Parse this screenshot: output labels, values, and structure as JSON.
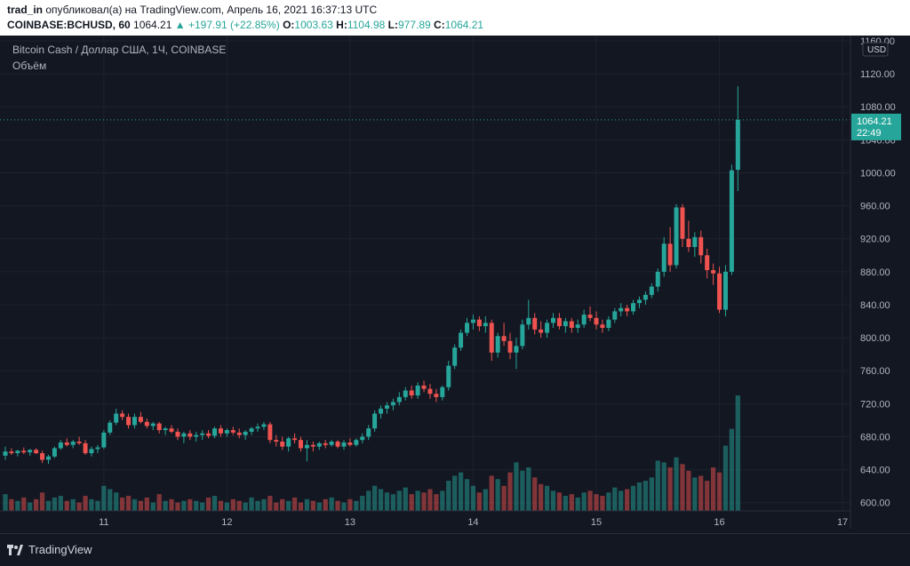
{
  "header": {
    "user": "trad_in",
    "published_text": "опубликовал(а) на TradingView.com, Апрель 16, 2021 16:37:13 UTC",
    "symbol": "COINBASE:BCHUSD, 60",
    "last": "1064.21",
    "change": "▲ +197.91 (+22.85%)",
    "o_label": "O:",
    "o_value": "1003.63",
    "h_label": "H:",
    "h_value": "1104.98",
    "l_label": "L:",
    "l_value": "977.89",
    "c_label": "C:",
    "c_value": "1064.21"
  },
  "legend": {
    "title": "Bitcoin Cash / Доллар США, 1Ч, COINBASE",
    "volume_label": "Объём"
  },
  "footer": {
    "brand": "TradingView"
  },
  "colors": {
    "up": "#26a69a",
    "down": "#ef5350",
    "bg": "#131722",
    "grid": "#1e222d"
  },
  "chart_data": {
    "type": "candlestick",
    "currency_label": "USD",
    "last_price_label": "1064.21",
    "countdown_label": "22:49",
    "ylim": [
      590,
      1160
    ],
    "yticks": [
      "600.00",
      "640.00",
      "680.00",
      "720.00",
      "760.00",
      "800.00",
      "840.00",
      "880.00",
      "920.00",
      "960.00",
      "1000.00",
      "1040.00",
      "1080.00",
      "1120.00",
      "1160.00"
    ],
    "xlim": [
      0,
      137
    ],
    "xticks": [
      {
        "label": "11",
        "pos": 16
      },
      {
        "label": "12",
        "pos": 36
      },
      {
        "label": "13",
        "pos": 56
      },
      {
        "label": "14",
        "pos": 76
      },
      {
        "label": "15",
        "pos": 96
      },
      {
        "label": "16",
        "pos": 116
      },
      {
        "label": "17",
        "pos": 136
      }
    ],
    "ohlc": [
      [
        657,
        668,
        652,
        662
      ],
      [
        662,
        666,
        658,
        660
      ],
      [
        660,
        664,
        656,
        663
      ],
      [
        663,
        667,
        659,
        661
      ],
      [
        661,
        665,
        657,
        664
      ],
      [
        664,
        666,
        659,
        660
      ],
      [
        660,
        663,
        648,
        652
      ],
      [
        652,
        658,
        647,
        656
      ],
      [
        656,
        668,
        654,
        666
      ],
      [
        666,
        676,
        664,
        673
      ],
      [
        673,
        678,
        668,
        670
      ],
      [
        670,
        676,
        666,
        674
      ],
      [
        674,
        680,
        670,
        672
      ],
      [
        672,
        676,
        658,
        660
      ],
      [
        660,
        668,
        656,
        665
      ],
      [
        665,
        670,
        660,
        667
      ],
      [
        667,
        688,
        665,
        685
      ],
      [
        685,
        700,
        682,
        697
      ],
      [
        697,
        714,
        694,
        708
      ],
      [
        708,
        712,
        700,
        704
      ],
      [
        704,
        708,
        690,
        694
      ],
      [
        694,
        708,
        690,
        704
      ],
      [
        704,
        710,
        696,
        698
      ],
      [
        698,
        702,
        690,
        693
      ],
      [
        693,
        698,
        688,
        696
      ],
      [
        696,
        698,
        684,
        688
      ],
      [
        688,
        692,
        682,
        690
      ],
      [
        690,
        694,
        684,
        686
      ],
      [
        686,
        690,
        676,
        680
      ],
      [
        680,
        686,
        672,
        684
      ],
      [
        684,
        688,
        676,
        680
      ],
      [
        680,
        686,
        674,
        682
      ],
      [
        682,
        688,
        676,
        684
      ],
      [
        684,
        688,
        678,
        681
      ],
      [
        681,
        692,
        678,
        690
      ],
      [
        690,
        694,
        680,
        684
      ],
      [
        684,
        690,
        680,
        688
      ],
      [
        688,
        692,
        682,
        685
      ],
      [
        685,
        690,
        678,
        682
      ],
      [
        682,
        688,
        676,
        686
      ],
      [
        686,
        692,
        682,
        690
      ],
      [
        690,
        696,
        686,
        692
      ],
      [
        692,
        698,
        688,
        695
      ],
      [
        695,
        698,
        672,
        676
      ],
      [
        676,
        682,
        668,
        674
      ],
      [
        674,
        680,
        664,
        668
      ],
      [
        668,
        680,
        662,
        678
      ],
      [
        678,
        684,
        672,
        676
      ],
      [
        676,
        680,
        662,
        666
      ],
      [
        666,
        676,
        650,
        670
      ],
      [
        670,
        674,
        662,
        668
      ],
      [
        668,
        674,
        664,
        672
      ],
      [
        672,
        676,
        666,
        670
      ],
      [
        670,
        676,
        668,
        674
      ],
      [
        674,
        676,
        666,
        668
      ],
      [
        668,
        676,
        664,
        673
      ],
      [
        673,
        678,
        668,
        670
      ],
      [
        670,
        678,
        668,
        676
      ],
      [
        676,
        684,
        672,
        680
      ],
      [
        680,
        694,
        676,
        690
      ],
      [
        690,
        712,
        686,
        708
      ],
      [
        708,
        718,
        702,
        714
      ],
      [
        714,
        722,
        708,
        718
      ],
      [
        718,
        726,
        712,
        722
      ],
      [
        722,
        734,
        718,
        728
      ],
      [
        728,
        740,
        724,
        736
      ],
      [
        736,
        742,
        726,
        730
      ],
      [
        730,
        746,
        726,
        742
      ],
      [
        742,
        748,
        734,
        738
      ],
      [
        738,
        744,
        726,
        732
      ],
      [
        732,
        738,
        722,
        728
      ],
      [
        728,
        742,
        724,
        740
      ],
      [
        740,
        772,
        736,
        766
      ],
      [
        766,
        792,
        762,
        788
      ],
      [
        788,
        810,
        784,
        806
      ],
      [
        806,
        824,
        802,
        818
      ],
      [
        818,
        828,
        810,
        822
      ],
      [
        822,
        826,
        808,
        814
      ],
      [
        814,
        826,
        806,
        818
      ],
      [
        818,
        822,
        772,
        782
      ],
      [
        782,
        806,
        776,
        802
      ],
      [
        802,
        818,
        790,
        796
      ],
      [
        796,
        806,
        774,
        782
      ],
      [
        782,
        800,
        762,
        790
      ],
      [
        790,
        822,
        786,
        816
      ],
      [
        816,
        846,
        810,
        824
      ],
      [
        824,
        830,
        804,
        810
      ],
      [
        810,
        820,
        800,
        806
      ],
      [
        806,
        822,
        800,
        818
      ],
      [
        818,
        830,
        812,
        824
      ],
      [
        824,
        830,
        810,
        814
      ],
      [
        814,
        824,
        806,
        820
      ],
      [
        820,
        824,
        806,
        812
      ],
      [
        812,
        822,
        806,
        816
      ],
      [
        816,
        834,
        812,
        828
      ],
      [
        828,
        838,
        820,
        824
      ],
      [
        824,
        832,
        810,
        816
      ],
      [
        816,
        822,
        806,
        812
      ],
      [
        812,
        826,
        808,
        822
      ],
      [
        822,
        836,
        818,
        832
      ],
      [
        832,
        842,
        826,
        836
      ],
      [
        836,
        840,
        826,
        832
      ],
      [
        832,
        846,
        828,
        842
      ],
      [
        842,
        850,
        836,
        846
      ],
      [
        846,
        856,
        840,
        852
      ],
      [
        852,
        866,
        848,
        862
      ],
      [
        862,
        884,
        856,
        880
      ],
      [
        880,
        922,
        874,
        914
      ],
      [
        914,
        934,
        880,
        888
      ],
      [
        888,
        962,
        884,
        958
      ],
      [
        958,
        962,
        910,
        920
      ],
      [
        920,
        942,
        904,
        910
      ],
      [
        910,
        928,
        898,
        922
      ],
      [
        922,
        930,
        890,
        900
      ],
      [
        900,
        908,
        872,
        882
      ],
      [
        882,
        890,
        864,
        878
      ],
      [
        878,
        886,
        830,
        834
      ],
      [
        834,
        888,
        826,
        880
      ],
      [
        880,
        1010,
        876,
        1003
      ],
      [
        1003.63,
        1104.98,
        977.89,
        1064.21
      ]
    ],
    "volume": [
      20,
      14,
      12,
      16,
      10,
      14,
      22,
      12,
      16,
      18,
      12,
      14,
      10,
      18,
      14,
      12,
      30,
      26,
      22,
      16,
      18,
      14,
      12,
      16,
      10,
      20,
      12,
      14,
      10,
      12,
      14,
      12,
      10,
      16,
      18,
      12,
      10,
      14,
      12,
      10,
      16,
      12,
      14,
      18,
      10,
      14,
      12,
      16,
      10,
      14,
      12,
      10,
      14,
      16,
      12,
      10,
      14,
      12,
      18,
      24,
      30,
      26,
      22,
      20,
      24,
      28,
      20,
      24,
      22,
      26,
      20,
      24,
      36,
      42,
      46,
      38,
      30,
      22,
      26,
      42,
      38,
      30,
      46,
      58,
      48,
      52,
      40,
      32,
      30,
      24,
      22,
      18,
      20,
      16,
      22,
      24,
      20,
      18,
      22,
      28,
      24,
      26,
      30,
      34,
      36,
      40,
      60,
      58,
      52,
      64,
      56,
      48,
      40,
      42,
      36,
      52,
      46,
      78,
      98,
      138
    ]
  }
}
